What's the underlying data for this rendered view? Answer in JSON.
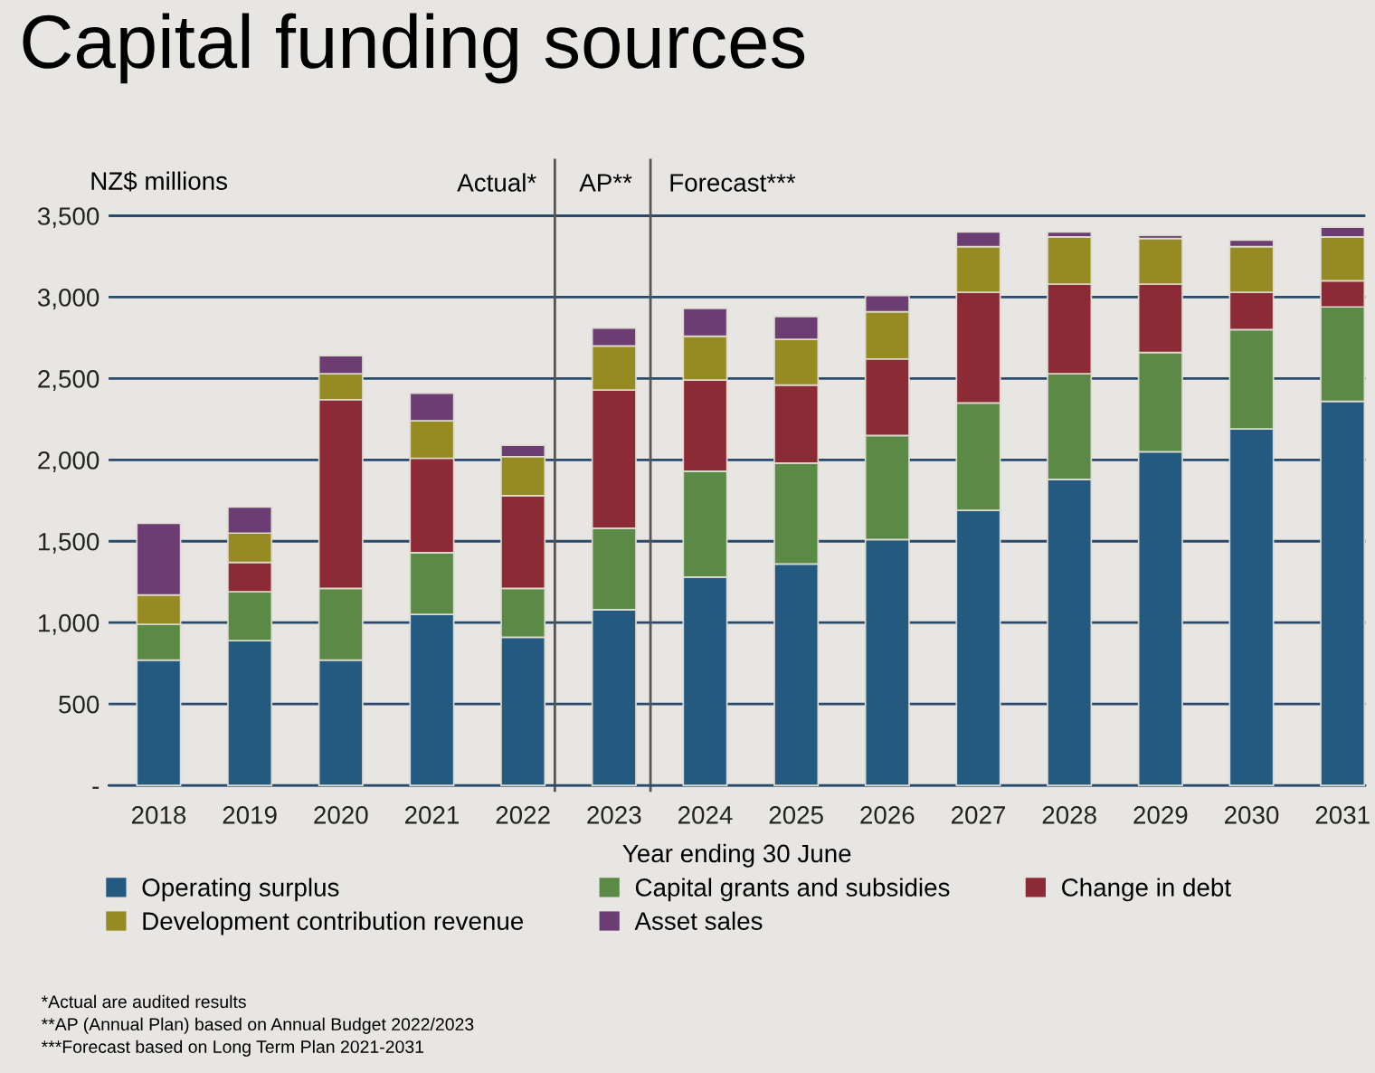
{
  "chart_data": {
    "type": "bar",
    "title": "Capital funding sources",
    "ylabel": "NZ$ millions",
    "xlabel": "Year ending 30 June",
    "x": [
      2018,
      2019,
      2020,
      2021,
      2022,
      2023,
      2024,
      2025,
      2026,
      2027,
      2028,
      2029,
      2030,
      2031
    ],
    "xlim": [
      2017.45,
      2031.25
    ],
    "xticks": [
      2018,
      2019,
      2020,
      2021,
      2022,
      2023,
      2024,
      2025,
      2026,
      2027,
      2028,
      2029,
      2030,
      2031
    ],
    "ylim": [
      -40,
      3850
    ],
    "yticks": [
      {
        "value": 0,
        "label": "-"
      },
      {
        "value": 500,
        "label": "500"
      },
      {
        "value": 1000,
        "label": "1,000"
      },
      {
        "value": 1500,
        "label": "1,500"
      },
      {
        "value": 2000,
        "label": "2,000"
      },
      {
        "value": 2500,
        "label": "2,500"
      },
      {
        "value": 3000,
        "label": "3,000"
      },
      {
        "value": 3500,
        "label": "3,500"
      }
    ],
    "stacked": true,
    "grid": "y",
    "legend": "bottom",
    "series": [
      {
        "name": "Operating surplus",
        "color": "#245a80",
        "values": [
          770,
          890,
          770,
          1050,
          910,
          1080,
          1280,
          1360,
          1510,
          1690,
          1880,
          2050,
          2190,
          2360
        ]
      },
      {
        "name": "Capital grants and subsidies",
        "color": "#5a8a45",
        "values": [
          220,
          300,
          440,
          380,
          300,
          500,
          650,
          620,
          640,
          660,
          650,
          610,
          610,
          580
        ]
      },
      {
        "name": "Change in debt",
        "color": "#8c2a35",
        "values": [
          null,
          180,
          1160,
          580,
          570,
          850,
          560,
          480,
          470,
          680,
          550,
          420,
          230,
          160
        ]
      },
      {
        "name": "Development contribution revenue",
        "color": "#968a22",
        "values": [
          180,
          180,
          160,
          230,
          240,
          270,
          270,
          280,
          290,
          280,
          290,
          280,
          280,
          270
        ]
      },
      {
        "name": "Asset sales",
        "color": "#6b3d72",
        "values": [
          440,
          160,
          110,
          170,
          70,
          110,
          170,
          140,
          100,
          90,
          30,
          20,
          40,
          60
        ]
      }
    ],
    "ref_lines": [
      {
        "axis": "x",
        "value": 2022.35,
        "label": "Actual*",
        "color": "#555555"
      },
      {
        "axis": "x",
        "value": 2023.4,
        "label": "AP**",
        "color": "#555555"
      }
    ],
    "annotations": [
      "Forecast***",
      "*Actual are audited results",
      "**AP (Annual Plan) based on Annual Budget 2022/2023",
      "***Forecast based on Long Term Plan 2021-2031"
    ]
  }
}
